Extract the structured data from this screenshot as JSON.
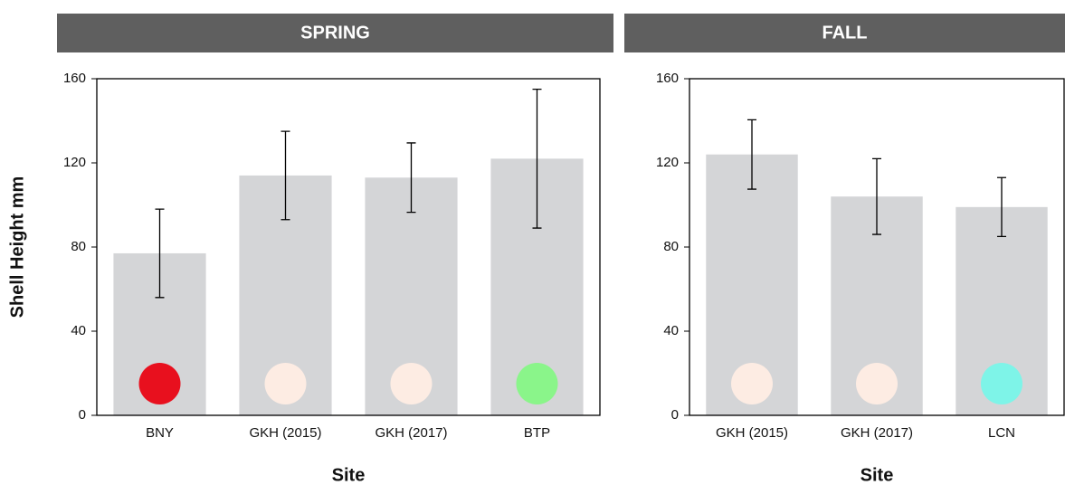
{
  "chart_data": [
    {
      "type": "bar",
      "title": "SPRING",
      "xlabel": "Site",
      "ylabel": "Shell Height  mm",
      "categories": [
        "BNY",
        "GKH (2015)",
        "GKH (2017)",
        "BTP"
      ],
      "values": [
        77,
        114,
        113,
        122
      ],
      "errors": [
        21,
        21,
        16.5,
        33
      ],
      "color": "#d4d5d7",
      "marker_colors": [
        "#e8101e",
        "#fdece3",
        "#fdece3",
        "#8af58a"
      ],
      "ylim": [
        0,
        160
      ],
      "yticks": [
        0,
        40,
        80,
        120,
        160
      ]
    },
    {
      "type": "bar",
      "title": "FALL",
      "xlabel": "Site",
      "categories": [
        "GKH (2015)",
        "GKH (2017)",
        "LCN"
      ],
      "values": [
        124,
        104,
        99
      ],
      "errors": [
        16.5,
        18,
        14
      ],
      "color": "#d4d5d7",
      "marker_colors": [
        "#fdece3",
        "#fdece3",
        "#7ef4e8"
      ],
      "ylim": [
        0,
        160
      ],
      "yticks": [
        0,
        40,
        80,
        120,
        160
      ]
    }
  ]
}
